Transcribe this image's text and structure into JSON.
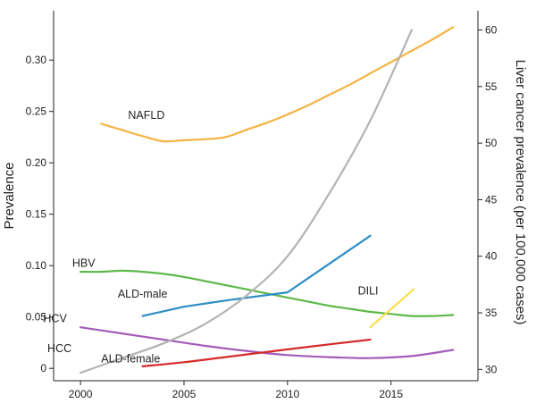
{
  "chart_data": {
    "type": "line",
    "title": "",
    "ylabel": "Prevalence",
    "y2label": "Liver cancer prevalence (per 100,000 cases)",
    "xlim": [
      1998.7,
      2019.2
    ],
    "ylim": [
      -0.012,
      0.348
    ],
    "y2lim": [
      29.0,
      61.7
    ],
    "x_ticks": [
      2000,
      2005,
      2010,
      2015
    ],
    "y_ticks": [
      0,
      0.05,
      0.1,
      0.15,
      0.2,
      0.25,
      0.3
    ],
    "y_tick_labels": [
      "0",
      "0.05",
      "0.10",
      "0.15",
      "0.20",
      "0.25",
      "0.30"
    ],
    "y2_ticks": [
      30,
      35,
      40,
      45,
      50,
      55,
      60
    ],
    "grid": false,
    "legend": "none",
    "series": [
      {
        "name": "NAFLD",
        "axis": "left",
        "color": "#f5b342",
        "label_pos": [
          2002.3,
          0.243
        ],
        "x": [
          2001,
          2002,
          2003,
          2004,
          2005,
          2006,
          2007,
          2008,
          2009,
          2010,
          2011,
          2012,
          2013,
          2014,
          2015,
          2016,
          2017,
          2018
        ],
        "y": [
          0.238,
          0.232,
          0.226,
          0.221,
          0.222,
          0.223,
          0.225,
          0.232,
          0.239,
          0.247,
          0.256,
          0.266,
          0.276,
          0.287,
          0.298,
          0.309,
          0.32,
          0.332
        ]
      },
      {
        "name": "HBV",
        "axis": "left",
        "color": "#5db84a",
        "label_pos": [
          1999.6,
          0.099
        ],
        "x": [
          2000,
          2001,
          2002,
          2003,
          2004,
          2005,
          2006,
          2007,
          2008,
          2009,
          2010,
          2011,
          2012,
          2013,
          2014,
          2015,
          2016,
          2017,
          2018
        ],
        "y": [
          0.094,
          0.094,
          0.095,
          0.094,
          0.092,
          0.089,
          0.085,
          0.081,
          0.077,
          0.073,
          0.069,
          0.065,
          0.061,
          0.058,
          0.055,
          0.053,
          0.051,
          0.051,
          0.052
        ]
      },
      {
        "name": "ALD-male",
        "axis": "left",
        "color": "#2a8dc5",
        "label_pos": [
          2001.8,
          0.069
        ],
        "x": [
          2003,
          2005,
          2007,
          2010,
          2014
        ],
        "y": [
          0.051,
          0.06,
          0.066,
          0.074,
          0.129
        ]
      },
      {
        "name": "DILI",
        "axis": "left",
        "color": "#f7e04a",
        "label_pos": [
          2013.4,
          0.072
        ],
        "x": [
          2014,
          2016.1
        ],
        "y": [
          0.04,
          0.077
        ]
      },
      {
        "name": "HCV",
        "axis": "left",
        "color": "#a55bb8",
        "label_pos": [
          1998.2,
          0.045
        ],
        "x": [
          2000,
          2002,
          2004,
          2006,
          2008,
          2010,
          2012,
          2014,
          2016,
          2018
        ],
        "y": [
          0.04,
          0.034,
          0.028,
          0.022,
          0.017,
          0.013,
          0.011,
          0.01,
          0.012,
          0.018
        ]
      },
      {
        "name": "ALD-female",
        "axis": "left",
        "color": "#d62a2a",
        "label_pos": [
          2001.0,
          0.006
        ],
        "x": [
          2003,
          2005,
          2007,
          2009,
          2011,
          2014
        ],
        "y": [
          0.002,
          0.006,
          0.011,
          0.016,
          0.021,
          0.028
        ]
      },
      {
        "name": "HCC",
        "axis": "right",
        "color": "#b3b3b3",
        "label_pos": [
          1998.4,
          0.016
        ],
        "x": [
          2000,
          2002,
          2004,
          2006,
          2008,
          2010,
          2012,
          2014,
          2016
        ],
        "y": [
          29.7,
          31.0,
          32.3,
          34.0,
          36.5,
          40.0,
          45.5,
          52.0,
          60.0
        ]
      }
    ]
  }
}
